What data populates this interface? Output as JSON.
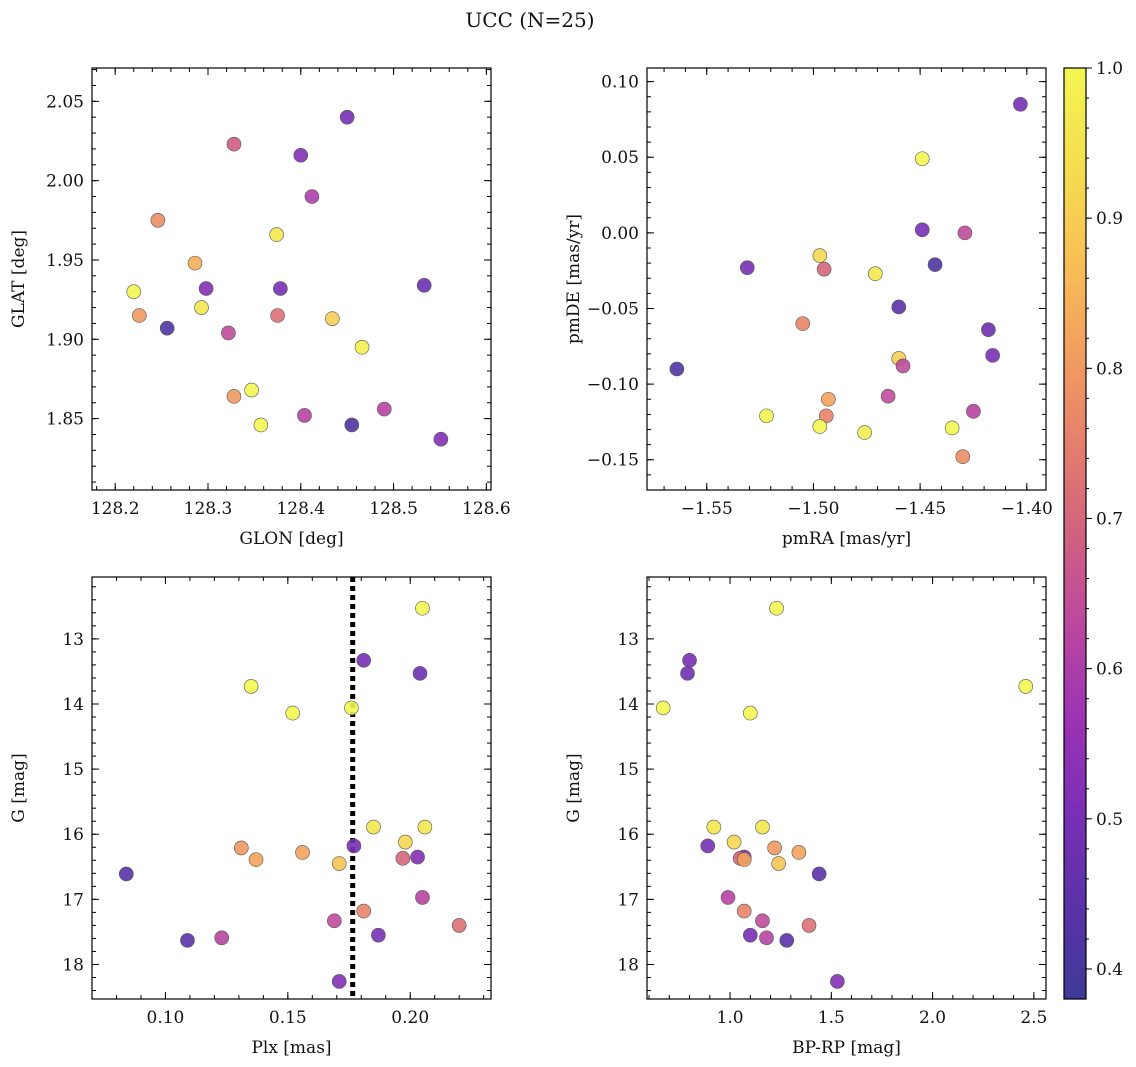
{
  "figure": {
    "title": "UCC (N=25)"
  },
  "colorbar": {
    "range": [
      0.38,
      1.0
    ],
    "ticks": [
      {
        "value": 0.4,
        "label": "0.4"
      },
      {
        "value": 0.5,
        "label": "0.5"
      },
      {
        "value": 0.6,
        "label": "0.6"
      },
      {
        "value": 0.7,
        "label": "0.7"
      },
      {
        "value": 0.8,
        "label": "0.8"
      },
      {
        "value": 0.9,
        "label": "0.9"
      },
      {
        "value": 1.0,
        "label": "1.0"
      }
    ],
    "colormap": "plasma",
    "stops": [
      "#3e3a97",
      "#5a32a8",
      "#7a2fb6",
      "#9b33b4",
      "#bb47a0",
      "#d2617f",
      "#e6806c",
      "#f3a05e",
      "#f7c255",
      "#f5df4f",
      "#f2f651"
    ]
  },
  "chart_data": [
    {
      "type": "scatter",
      "id": "glon-glat",
      "xlabel": "GLON [deg]",
      "ylabel": "GLAT [deg]",
      "xlim": [
        128.175,
        128.605
      ],
      "ylim": [
        1.805,
        2.071
      ],
      "invert_y": false,
      "xticks": [
        {
          "value": 128.2,
          "label": "128.2"
        },
        {
          "value": 128.3,
          "label": "128.3"
        },
        {
          "value": 128.4,
          "label": "128.4"
        },
        {
          "value": 128.5,
          "label": "128.5"
        },
        {
          "value": 128.6,
          "label": "128.6"
        }
      ],
      "yticks": [
        {
          "value": 1.85,
          "label": "1.85"
        },
        {
          "value": 1.9,
          "label": "1.90"
        },
        {
          "value": 1.95,
          "label": "1.95"
        },
        {
          "value": 2.0,
          "label": "2.00"
        },
        {
          "value": 2.05,
          "label": "2.05"
        }
      ],
      "points": [
        {
          "x": 128.45,
          "y": 2.04,
          "c": 0.5
        },
        {
          "x": 128.328,
          "y": 2.023,
          "c": 0.68
        },
        {
          "x": 128.4,
          "y": 2.016,
          "c": 0.52
        },
        {
          "x": 128.412,
          "y": 1.99,
          "c": 0.6
        },
        {
          "x": 128.246,
          "y": 1.975,
          "c": 0.78
        },
        {
          "x": 128.374,
          "y": 1.966,
          "c": 0.96
        },
        {
          "x": 128.286,
          "y": 1.948,
          "c": 0.84
        },
        {
          "x": 128.533,
          "y": 1.934,
          "c": 0.48
        },
        {
          "x": 128.22,
          "y": 1.93,
          "c": 1.0
        },
        {
          "x": 128.298,
          "y": 1.932,
          "c": 0.52
        },
        {
          "x": 128.378,
          "y": 1.932,
          "c": 0.5
        },
        {
          "x": 128.293,
          "y": 1.92,
          "c": 0.96
        },
        {
          "x": 128.226,
          "y": 1.915,
          "c": 0.8
        },
        {
          "x": 128.375,
          "y": 1.915,
          "c": 0.72
        },
        {
          "x": 128.434,
          "y": 1.913,
          "c": 0.9
        },
        {
          "x": 128.256,
          "y": 1.907,
          "c": 0.42
        },
        {
          "x": 128.322,
          "y": 1.904,
          "c": 0.64
        },
        {
          "x": 128.466,
          "y": 1.895,
          "c": 0.98
        },
        {
          "x": 128.347,
          "y": 1.868,
          "c": 1.0
        },
        {
          "x": 128.328,
          "y": 1.864,
          "c": 0.8
        },
        {
          "x": 128.357,
          "y": 1.846,
          "c": 1.0
        },
        {
          "x": 128.455,
          "y": 1.846,
          "c": 0.42
        },
        {
          "x": 128.404,
          "y": 1.852,
          "c": 0.62
        },
        {
          "x": 128.49,
          "y": 1.856,
          "c": 0.62
        },
        {
          "x": 128.551,
          "y": 1.837,
          "c": 0.52
        }
      ]
    },
    {
      "type": "scatter",
      "id": "pmra-pmde",
      "xlabel": "pmRA [mas/yr]",
      "ylabel": "pmDE [mas/yr]",
      "xlim": [
        -1.578,
        -1.391
      ],
      "ylim": [
        -0.17,
        0.109
      ],
      "invert_y": false,
      "xticks": [
        {
          "value": -1.55,
          "label": "−1.55"
        },
        {
          "value": -1.5,
          "label": "−1.50"
        },
        {
          "value": -1.45,
          "label": "−1.45"
        },
        {
          "value": -1.4,
          "label": "−1.40"
        }
      ],
      "yticks": [
        {
          "value": -0.15,
          "label": "−0.15"
        },
        {
          "value": -0.1,
          "label": "−0.10"
        },
        {
          "value": -0.05,
          "label": "−0.05"
        },
        {
          "value": 0.0,
          "label": "0.00"
        },
        {
          "value": 0.05,
          "label": "0.05"
        },
        {
          "value": 0.1,
          "label": "0.10"
        }
      ],
      "points": [
        {
          "x": -1.403,
          "y": 0.085,
          "c": 0.5
        },
        {
          "x": -1.449,
          "y": 0.049,
          "c": 1.0
        },
        {
          "x": -1.449,
          "y": 0.002,
          "c": 0.5
        },
        {
          "x": -1.429,
          "y": 0.0,
          "c": 0.64
        },
        {
          "x": -1.443,
          "y": -0.021,
          "c": 0.42
        },
        {
          "x": -1.531,
          "y": -0.023,
          "c": 0.5
        },
        {
          "x": -1.497,
          "y": -0.015,
          "c": 0.92
        },
        {
          "x": -1.495,
          "y": -0.024,
          "c": 0.7
        },
        {
          "x": -1.471,
          "y": -0.027,
          "c": 0.96
        },
        {
          "x": -1.46,
          "y": -0.049,
          "c": 0.44
        },
        {
          "x": -1.505,
          "y": -0.06,
          "c": 0.76
        },
        {
          "x": -1.418,
          "y": -0.064,
          "c": 0.48
        },
        {
          "x": -1.416,
          "y": -0.081,
          "c": 0.5
        },
        {
          "x": -1.46,
          "y": -0.083,
          "c": 0.9
        },
        {
          "x": -1.458,
          "y": -0.088,
          "c": 0.64
        },
        {
          "x": -1.564,
          "y": -0.09,
          "c": 0.42
        },
        {
          "x": -1.465,
          "y": -0.108,
          "c": 0.64
        },
        {
          "x": -1.493,
          "y": -0.11,
          "c": 0.82
        },
        {
          "x": -1.425,
          "y": -0.118,
          "c": 0.62
        },
        {
          "x": -1.522,
          "y": -0.121,
          "c": 1.0
        },
        {
          "x": -1.494,
          "y": -0.121,
          "c": 0.76
        },
        {
          "x": -1.497,
          "y": -0.128,
          "c": 1.0
        },
        {
          "x": -1.435,
          "y": -0.129,
          "c": 1.0
        },
        {
          "x": -1.476,
          "y": -0.132,
          "c": 0.98
        },
        {
          "x": -1.43,
          "y": -0.148,
          "c": 0.78
        }
      ]
    },
    {
      "type": "scatter",
      "id": "plx-g",
      "xlabel": "Plx [mas]",
      "ylabel": "G [mag]",
      "xlim": [
        0.07,
        0.233
      ],
      "ylim": [
        12.05,
        18.53
      ],
      "invert_y": true,
      "vline": 0.1765,
      "xticks": [
        {
          "value": 0.1,
          "label": "0.10"
        },
        {
          "value": 0.15,
          "label": "0.15"
        },
        {
          "value": 0.2,
          "label": "0.20"
        }
      ],
      "yticks": [
        {
          "value": 13,
          "label": "13"
        },
        {
          "value": 14,
          "label": "14"
        },
        {
          "value": 15,
          "label": "15"
        },
        {
          "value": 16,
          "label": "16"
        },
        {
          "value": 17,
          "label": "17"
        },
        {
          "value": 18,
          "label": "18"
        }
      ],
      "points": [
        {
          "x": 0.205,
          "y": 12.53,
          "c": 1.0
        },
        {
          "x": 0.181,
          "y": 13.33,
          "c": 0.5
        },
        {
          "x": 0.204,
          "y": 13.53,
          "c": 0.48
        },
        {
          "x": 0.135,
          "y": 13.73,
          "c": 1.0
        },
        {
          "x": 0.176,
          "y": 14.06,
          "c": 1.0
        },
        {
          "x": 0.152,
          "y": 14.14,
          "c": 1.0
        },
        {
          "x": 0.185,
          "y": 15.89,
          "c": 0.96
        },
        {
          "x": 0.206,
          "y": 15.89,
          "c": 0.96
        },
        {
          "x": 0.198,
          "y": 16.12,
          "c": 0.92
        },
        {
          "x": 0.177,
          "y": 16.18,
          "c": 0.5
        },
        {
          "x": 0.131,
          "y": 16.21,
          "c": 0.8
        },
        {
          "x": 0.156,
          "y": 16.28,
          "c": 0.82
        },
        {
          "x": 0.203,
          "y": 16.35,
          "c": 0.52
        },
        {
          "x": 0.197,
          "y": 16.37,
          "c": 0.7
        },
        {
          "x": 0.137,
          "y": 16.39,
          "c": 0.82
        },
        {
          "x": 0.171,
          "y": 16.45,
          "c": 0.88
        },
        {
          "x": 0.084,
          "y": 16.61,
          "c": 0.44
        },
        {
          "x": 0.205,
          "y": 16.97,
          "c": 0.62
        },
        {
          "x": 0.181,
          "y": 17.18,
          "c": 0.76
        },
        {
          "x": 0.169,
          "y": 17.33,
          "c": 0.64
        },
        {
          "x": 0.22,
          "y": 17.4,
          "c": 0.72
        },
        {
          "x": 0.187,
          "y": 17.55,
          "c": 0.5
        },
        {
          "x": 0.123,
          "y": 17.59,
          "c": 0.62
        },
        {
          "x": 0.109,
          "y": 17.63,
          "c": 0.44
        },
        {
          "x": 0.171,
          "y": 18.26,
          "c": 0.52
        }
      ]
    },
    {
      "type": "scatter",
      "id": "bprp-g",
      "xlabel": "BP-RP [mag]",
      "ylabel": "G [mag]",
      "xlim": [
        0.59,
        2.56
      ],
      "ylim": [
        12.05,
        18.53
      ],
      "invert_y": true,
      "xticks": [
        {
          "value": 1.0,
          "label": "1.0"
        },
        {
          "value": 1.5,
          "label": "1.5"
        },
        {
          "value": 2.0,
          "label": "2.0"
        },
        {
          "value": 2.5,
          "label": "2.5"
        }
      ],
      "yticks": [
        {
          "value": 13,
          "label": "13"
        },
        {
          "value": 14,
          "label": "14"
        },
        {
          "value": 15,
          "label": "15"
        },
        {
          "value": 16,
          "label": "16"
        },
        {
          "value": 17,
          "label": "17"
        },
        {
          "value": 18,
          "label": "18"
        }
      ],
      "points": [
        {
          "x": 1.23,
          "y": 12.53,
          "c": 1.0
        },
        {
          "x": 0.8,
          "y": 13.33,
          "c": 0.5
        },
        {
          "x": 0.79,
          "y": 13.53,
          "c": 0.48
        },
        {
          "x": 2.46,
          "y": 13.73,
          "c": 1.0
        },
        {
          "x": 0.67,
          "y": 14.06,
          "c": 1.0
        },
        {
          "x": 1.1,
          "y": 14.14,
          "c": 1.0
        },
        {
          "x": 0.92,
          "y": 15.89,
          "c": 0.96
        },
        {
          "x": 1.16,
          "y": 15.89,
          "c": 0.96
        },
        {
          "x": 1.02,
          "y": 16.12,
          "c": 0.92
        },
        {
          "x": 0.89,
          "y": 16.18,
          "c": 0.5
        },
        {
          "x": 1.22,
          "y": 16.21,
          "c": 0.8
        },
        {
          "x": 1.34,
          "y": 16.28,
          "c": 0.82
        },
        {
          "x": 1.07,
          "y": 16.35,
          "c": 0.52
        },
        {
          "x": 1.05,
          "y": 16.37,
          "c": 0.7
        },
        {
          "x": 1.07,
          "y": 16.39,
          "c": 0.82
        },
        {
          "x": 1.24,
          "y": 16.45,
          "c": 0.88
        },
        {
          "x": 1.44,
          "y": 16.61,
          "c": 0.44
        },
        {
          "x": 0.99,
          "y": 16.97,
          "c": 0.62
        },
        {
          "x": 1.07,
          "y": 17.18,
          "c": 0.76
        },
        {
          "x": 1.16,
          "y": 17.33,
          "c": 0.64
        },
        {
          "x": 1.39,
          "y": 17.4,
          "c": 0.72
        },
        {
          "x": 1.1,
          "y": 17.55,
          "c": 0.5
        },
        {
          "x": 1.18,
          "y": 17.59,
          "c": 0.62
        },
        {
          "x": 1.28,
          "y": 17.63,
          "c": 0.44
        },
        {
          "x": 1.53,
          "y": 18.26,
          "c": 0.52
        }
      ]
    }
  ]
}
